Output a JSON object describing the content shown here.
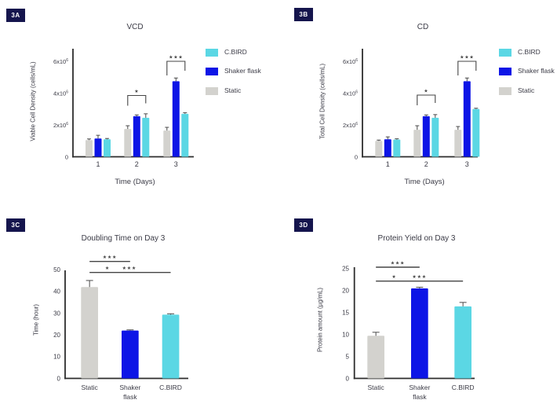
{
  "colors": {
    "cbird": "#5bd7e4",
    "shakerBlue": "#0d15e6",
    "staticGray": "#d3d2ce",
    "axis": "#2d2d2d",
    "text": "#3a3a45",
    "error": "#4a4a4a",
    "sig": "#454545",
    "badge_bg": "#15154d",
    "badge_text": "#ffffff",
    "background": "#ffffff"
  },
  "legend": {
    "items": [
      {
        "label": "C.BIRD",
        "color_key": "cbird"
      },
      {
        "label": "Shaker flask",
        "color_key": "shakerBlue"
      },
      {
        "label": "Static",
        "color_key": "staticGray"
      }
    ]
  },
  "panels": [
    {
      "badge": "3A",
      "title": "VCD"
    },
    {
      "badge": "3B",
      "title": "CD"
    },
    {
      "badge": "3C",
      "title": "Doubling Time on Day 3"
    },
    {
      "badge": "3D",
      "title": "Protein Yield on Day 3"
    }
  ],
  "chart_data": [
    {
      "id": "3A",
      "type": "bar",
      "grouped": true,
      "title": "VCD",
      "xlabel": "Time (Days)",
      "ylabel": "Viable Cell Density (cells/mL)",
      "y_unit": "x10^6 cells/mL",
      "categories": [
        "1",
        "2",
        "3"
      ],
      "series": [
        {
          "name": "Static",
          "color_key": "staticGray",
          "values": [
            1.05,
            1.75,
            1.65
          ],
          "errors": [
            0.07,
            0.2,
            0.2
          ]
        },
        {
          "name": "Shaker flask",
          "color_key": "shakerBlue",
          "values": [
            1.15,
            2.55,
            4.75
          ],
          "errors": [
            0.2,
            0.08,
            0.2
          ]
        },
        {
          "name": "C.BIRD",
          "color_key": "cbird",
          "values": [
            1.1,
            2.45,
            2.7
          ],
          "errors": [
            0.05,
            0.25,
            0.07
          ]
        }
      ],
      "yticks": [
        {
          "v": 0,
          "label": "0"
        },
        {
          "v": 2,
          "label": "2x10",
          "sup": "6"
        },
        {
          "v": 4,
          "label": "4x10",
          "sup": "6"
        },
        {
          "v": 6,
          "label": "6x10",
          "sup": "6"
        }
      ],
      "ylim": [
        0,
        6.8
      ],
      "legend_position": "right",
      "brackets": [
        {
          "category": "2",
          "from": "Static",
          "to": "C.BIRD",
          "label": "*"
        },
        {
          "category": "3",
          "from": "Static",
          "to": "C.BIRD",
          "label": "***"
        }
      ]
    },
    {
      "id": "3B",
      "type": "bar",
      "grouped": true,
      "title": "CD",
      "xlabel": "Time (Days)",
      "ylabel": "Total Cell Density (cells/mL)",
      "y_unit": "x10^6 cells/mL",
      "categories": [
        "1",
        "2",
        "3"
      ],
      "series": [
        {
          "name": "Static",
          "color_key": "staticGray",
          "values": [
            1.0,
            1.7,
            1.7
          ],
          "errors": [
            0.05,
            0.25,
            0.2
          ]
        },
        {
          "name": "Shaker flask",
          "color_key": "shakerBlue",
          "values": [
            1.1,
            2.55,
            4.75
          ],
          "errors": [
            0.15,
            0.08,
            0.2
          ]
        },
        {
          "name": "C.BIRD",
          "color_key": "cbird",
          "values": [
            1.08,
            2.45,
            3.0
          ],
          "errors": [
            0.05,
            0.2,
            0.05
          ]
        }
      ],
      "yticks": [
        {
          "v": 0,
          "label": "0"
        },
        {
          "v": 2,
          "label": "2x10",
          "sup": "6"
        },
        {
          "v": 4,
          "label": "4x10",
          "sup": "6"
        },
        {
          "v": 6,
          "label": "6x10",
          "sup": "6"
        }
      ],
      "ylim": [
        0,
        6.8
      ],
      "legend_position": "right",
      "brackets": [
        {
          "category": "2",
          "from": "Static",
          "to": "C.BIRD",
          "label": "*"
        },
        {
          "category": "3",
          "from": "Static",
          "to": "C.BIRD",
          "label": "***"
        }
      ]
    },
    {
      "id": "3C",
      "type": "bar",
      "grouped": false,
      "title": "Doubling Time on Day 3",
      "xlabel": "",
      "ylabel": "Time (hour)",
      "categories": [
        "Static",
        "Shaker flask",
        "C.BIRD"
      ],
      "colors_keys": [
        "staticGray",
        "shakerBlue",
        "cbird"
      ],
      "values": [
        42,
        22,
        29.3
      ],
      "errors": [
        3.0,
        0.3,
        0.4
      ],
      "yticks": [
        0,
        10,
        20,
        30,
        40,
        50
      ],
      "ylim": [
        0,
        52
      ],
      "sig_lines": [
        {
          "from": "Static",
          "to": "Shaker flask",
          "labels": [
            {
              "text": "***",
              "at": 0.5
            }
          ]
        },
        {
          "from": "Static",
          "to": "C.BIRD",
          "labels": [
            {
              "text": "*",
              "at": 0.22
            },
            {
              "text": "***",
              "at": 0.49
            }
          ]
        }
      ]
    },
    {
      "id": "3D",
      "type": "bar",
      "grouped": false,
      "title": "Protein Yield on Day 3",
      "xlabel": "",
      "ylabel": "Protein amount (µg/mL)",
      "categories": [
        "Static",
        "Shaker flask",
        "C.BIRD"
      ],
      "colors_keys": [
        "staticGray",
        "shakerBlue",
        "cbird"
      ],
      "values": [
        9.7,
        20.5,
        16.4
      ],
      "errors": [
        0.8,
        0.25,
        0.9
      ],
      "yticks": [
        0,
        5,
        10,
        15,
        20,
        25
      ],
      "ylim": [
        0,
        26
      ],
      "sig_lines": [
        {
          "from": "Static",
          "to": "Shaker flask",
          "labels": [
            {
              "text": "***",
              "at": 0.5
            }
          ]
        },
        {
          "from": "Static",
          "to": "C.BIRD",
          "labels": [
            {
              "text": "*",
              "at": 0.21
            },
            {
              "text": "***",
              "at": 0.5
            }
          ]
        }
      ]
    }
  ]
}
